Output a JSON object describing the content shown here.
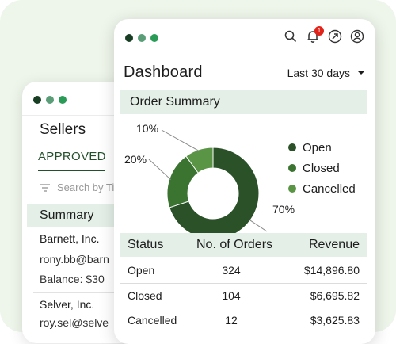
{
  "colors": {
    "background": "#eef5ea",
    "accent_light": "#e3efe7",
    "brand_dark": "#24502c",
    "dot1": "#173d22",
    "dot2": "#5a9e78",
    "dot3": "#2a9b57",
    "open": "#2a5128",
    "closed": "#3b7431",
    "cancelled": "#5a9545",
    "badge": "#e2231a"
  },
  "sellers_window": {
    "title": "Sellers",
    "tab_approved": "APPROVED",
    "search_placeholder": "Search by Ti",
    "summary_label": "Summary",
    "sellers": [
      {
        "name": "Barnett, Inc.",
        "email": "rony.bb@barn",
        "balance": "Balance: $30"
      },
      {
        "name": "Selver, Inc.",
        "email": "roy.sel@selve"
      }
    ]
  },
  "dashboard": {
    "title": "Dashboard",
    "date_range": "Last 30 days",
    "notification_count": "1",
    "order_summary_label": "Order Summary",
    "icons": [
      "search-icon",
      "bell-icon",
      "external-link-icon",
      "user-icon"
    ]
  },
  "chart_data": {
    "type": "pie",
    "donut": true,
    "title": "",
    "categories": [
      "Open",
      "Closed",
      "Cancelled"
    ],
    "values": [
      70,
      20,
      10
    ],
    "labels": [
      "70%",
      "20%",
      "10%"
    ],
    "legend": "right"
  },
  "orders_table": {
    "headers": [
      "Status",
      "No. of Orders",
      "Revenue"
    ],
    "rows": [
      [
        "Open",
        "324",
        "$14,896.80"
      ],
      [
        "Closed",
        "104",
        "$6,695.82"
      ],
      [
        "Cancelled",
        "12",
        "$3,625.83"
      ]
    ]
  }
}
